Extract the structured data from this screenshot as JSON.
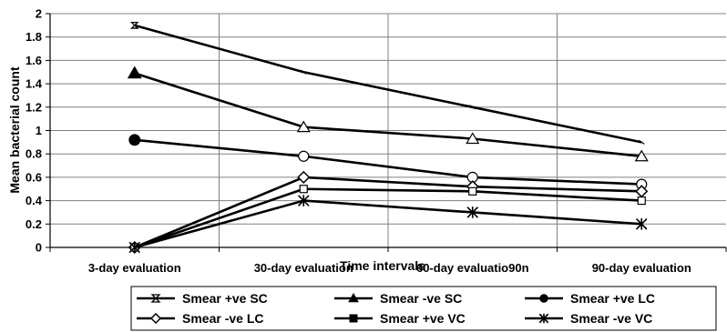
{
  "chart_data": {
    "type": "line",
    "title": "",
    "xlabel": "Time intervals",
    "ylabel": "Mean bacterial count",
    "ylim": [
      0,
      2
    ],
    "yticks": [
      "0",
      "0.2",
      "0.4",
      "0.6",
      "0.8",
      "1",
      "1.2",
      "1.4",
      "1.6",
      "1.8",
      "2"
    ],
    "grid": true,
    "legend_position": "bottom",
    "categories": [
      "3-day evaluation",
      "30-day evaluation",
      "60-day evaluatio90n",
      "90-day evaluation"
    ],
    "series": [
      {
        "name": "Smear +ve SC",
        "marker": "hourglass",
        "values": [
          1.9,
          1.5,
          1.2,
          0.9
        ]
      },
      {
        "name": "Smear -ve SC",
        "marker": "triangle",
        "values": [
          1.49,
          1.03,
          0.93,
          0.78
        ]
      },
      {
        "name": "Smear +ve LC",
        "marker": "circle",
        "values": [
          0.92,
          0.78,
          0.6,
          0.54
        ]
      },
      {
        "name": "Smear -ve LC",
        "marker": "diamond",
        "values": [
          0,
          0.6,
          0.52,
          0.48
        ]
      },
      {
        "name": "Smear +ve VC",
        "marker": "square",
        "values": [
          0,
          0.5,
          0.48,
          0.4
        ]
      },
      {
        "name": "Smear -ve VC",
        "marker": "asterisk",
        "values": [
          0,
          0.4,
          0.3,
          0.2
        ]
      }
    ],
    "colors": {
      "line": "#000000",
      "grid": "#808080",
      "plot_bg": "#ffffff",
      "legend_border": "#000000"
    }
  }
}
